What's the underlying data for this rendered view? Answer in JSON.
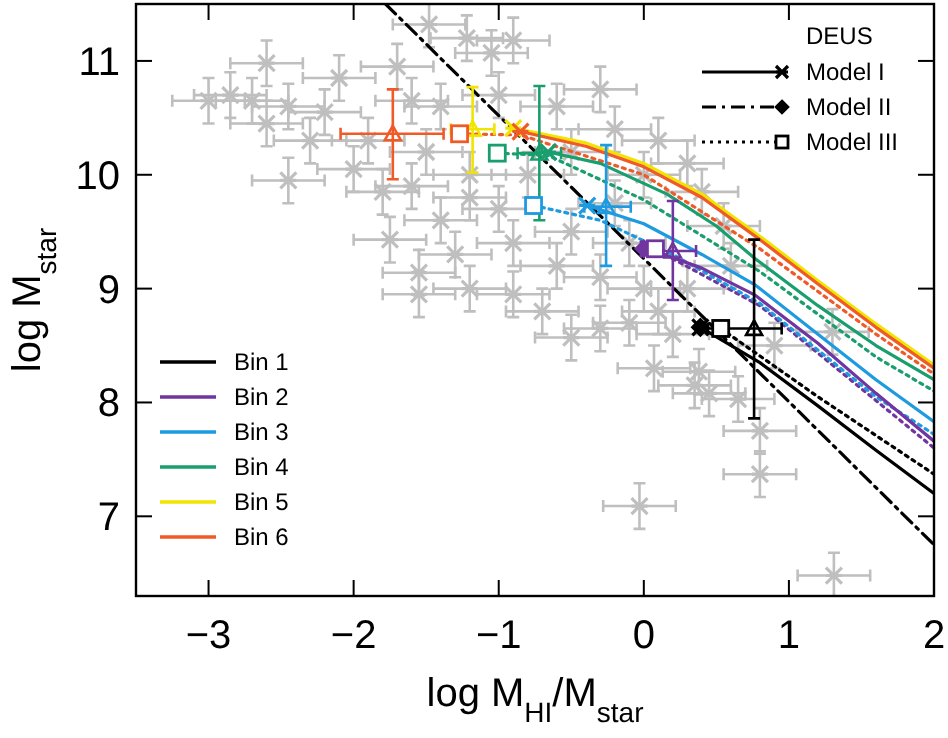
{
  "chart_data": {
    "type": "scatter",
    "xlabel": "log M$_{HI}$/M$_{star}$",
    "ylabel": "log M$_{star}$",
    "xlim": [
      -3.5,
      2
    ],
    "ylim": [
      6.3,
      11.5
    ],
    "xticks": [
      -3,
      -2,
      -1,
      0,
      1,
      2
    ],
    "yticks": [
      7,
      8,
      9,
      10,
      11
    ],
    "legend": "bottom left",
    "legend_title": "DEUS",
    "grid": false,
    "series": [
      {
        "color": "#bfbfbf",
        "marker": "cross",
        "x": [
          1.31,
          -0.03,
          0.8,
          0.8,
          0.65,
          0.45,
          0.35,
          0.38,
          0.07,
          1.3,
          0.9,
          -1.48,
          -1.22,
          -0.9,
          -1.05,
          -2.6,
          -3.0,
          -2.7,
          -2.45,
          -2.1,
          -1.7,
          -1.6,
          -2.3,
          -2.45,
          -2.0,
          -1.8,
          -1.75,
          -1.55,
          -1.55,
          -1.4,
          -1.2,
          -0.9,
          -0.7,
          -0.5,
          -0.3,
          -0.1,
          0.1,
          -0.6,
          -0.3,
          0.0,
          0.3,
          -0.5,
          -0.1,
          -1.0,
          -1.2,
          -0.5,
          -0.2,
          0.1,
          0.3,
          -0.6,
          -0.3,
          -1.4,
          -1.0,
          -2.6,
          -2.2,
          -1.9,
          -1.5,
          -1.6,
          -1.2,
          -0.9,
          -1.3,
          0.2,
          0.6,
          0.0,
          -0.2,
          -0.8,
          -2.85,
          0.4,
          0.55
        ],
        "values": [
          6.48,
          7.09,
          7.37,
          7.75,
          8.03,
          8.08,
          8.15,
          8.27,
          8.3,
          8.62,
          8.5,
          11.32,
          11.2,
          11.18,
          11.07,
          10.98,
          10.65,
          10.65,
          10.6,
          10.85,
          10.95,
          10.65,
          10.3,
          9.95,
          10.05,
          9.85,
          9.43,
          9.14,
          8.95,
          9.6,
          9.0,
          8.95,
          8.8,
          8.57,
          8.65,
          8.7,
          8.8,
          9.2,
          9.1,
          9.0,
          9.0,
          9.5,
          9.4,
          9.7,
          10.0,
          10.2,
          10.4,
          10.3,
          10.1,
          10.6,
          10.75,
          10.6,
          10.7,
          10.45,
          10.55,
          10.3,
          10.2,
          9.9,
          9.8,
          9.4,
          9.3,
          8.6,
          9.2,
          10.0,
          9.75,
          10.0,
          10.7,
          9.85,
          9.55
        ],
        "errors": [
          0.2,
          0.2,
          0.2,
          0.2,
          0.2,
          0.2,
          0.2,
          0.2,
          0.2,
          0.2,
          0.2,
          0.2,
          0.2,
          0.2,
          0.2,
          0.2,
          0.2,
          0.2,
          0.2,
          0.2,
          0.2,
          0.2,
          0.2,
          0.2,
          0.2,
          0.2,
          0.2,
          0.2,
          0.2,
          0.2,
          0.2,
          0.2,
          0.2,
          0.2,
          0.2,
          0.2,
          0.2,
          0.2,
          0.2,
          0.2,
          0.2,
          0.2,
          0.2,
          0.2,
          0.2,
          0.2,
          0.2,
          0.2,
          0.2,
          0.2,
          0.2,
          0.2,
          0.2,
          0.2,
          0.2,
          0.2,
          0.2,
          0.2,
          0.2,
          0.2,
          0.2,
          0.2,
          0.2,
          0.2,
          0.2,
          0.2,
          0.2,
          0.2,
          0.2
        ],
        "xerrors": [
          0.25,
          0.25,
          0.25,
          0.25,
          0.25,
          0.25,
          0.25,
          0.25,
          0.25,
          0.25,
          0.25,
          0.25,
          0.25,
          0.25,
          0.25,
          0.25,
          0.25,
          0.25,
          0.25,
          0.25,
          0.25,
          0.25,
          0.25,
          0.25,
          0.25,
          0.25,
          0.25,
          0.25,
          0.25,
          0.25,
          0.25,
          0.25,
          0.25,
          0.25,
          0.25,
          0.25,
          0.25,
          0.25,
          0.25,
          0.25,
          0.25,
          0.25,
          0.25,
          0.25,
          0.25,
          0.25,
          0.25,
          0.25,
          0.25,
          0.25,
          0.25,
          0.25,
          0.25,
          0.25,
          0.25,
          0.25,
          0.25,
          0.25,
          0.25,
          0.25,
          0.25,
          0.25,
          0.25,
          0.25,
          0.25,
          0.25,
          0.25,
          0.25,
          0.25
        ]
      },
      {
        "type": "line",
        "color": "#000000",
        "line_style": "dashed",
        "x": [
          -1.78,
          2
        ],
        "values": [
          11.5,
          6.75
        ]
      },
      {
        "type": "line",
        "color": "#7035a0",
        "line_style": "dotted",
        "x": [
          0.1,
          0.8,
          2
        ],
        "values": [
          9.33,
          8.85,
          7.6
        ]
      },
      {
        "type": "line",
        "color": "#000000",
        "line_style": "dotted",
        "x": [
          0.53,
          1.2,
          2
        ],
        "values": [
          8.65,
          8.05,
          7.37
        ]
      },
      {
        "type": "line",
        "color": "#1e9be0",
        "line_style": "dotted",
        "x": [
          -0.76,
          -0.3,
          0.2,
          0.8,
          1.6,
          2
        ],
        "values": [
          9.73,
          9.6,
          9.3,
          8.87,
          8.05,
          7.72
        ]
      },
      {
        "type": "line",
        "color": "#1a9e6e",
        "line_style": "dotted",
        "x": [
          -1.01,
          -0.66,
          0,
          0.8,
          1.6,
          2
        ],
        "values": [
          10.19,
          10.17,
          9.78,
          9.15,
          8.4,
          8.1
        ]
      },
      {
        "type": "line",
        "color": "#f05a28",
        "line_style": "dotted",
        "x": [
          -1.27,
          -0.85,
          0,
          0.8,
          1.6,
          2
        ],
        "values": [
          10.36,
          10.35,
          10.0,
          9.35,
          8.6,
          8.25
        ]
      },
      {
        "type": "line",
        "name": "Bin 1",
        "color": "#000000",
        "line_style": "solid",
        "x": [
          0.39,
          0.8,
          1.2,
          1.6,
          2
        ],
        "values": [
          8.66,
          8.35,
          7.97,
          7.58,
          7.2
        ]
      },
      {
        "type": "line",
        "name": "Bin 2",
        "color": "#7035a0",
        "line_style": "solid",
        "x": [
          0.03,
          0.4,
          0.77,
          1.2,
          1.6,
          2
        ],
        "values": [
          9.35,
          9.18,
          8.94,
          8.52,
          8.08,
          7.66
        ]
      },
      {
        "type": "line",
        "name": "Bin 3",
        "color": "#1e9be0",
        "line_style": "solid",
        "x": [
          -0.39,
          0,
          0.4,
          0.77,
          1.2,
          1.6,
          2
        ],
        "values": [
          9.73,
          9.57,
          9.3,
          9.03,
          8.6,
          8.2,
          7.83
        ]
      },
      {
        "type": "line",
        "name": "Bin 4",
        "color": "#1a9e6e",
        "line_style": "solid",
        "x": [
          -0.66,
          -0.3,
          0.16,
          0.5,
          0.77,
          1.2,
          1.6,
          2
        ],
        "values": [
          10.2,
          10.1,
          9.83,
          9.55,
          9.26,
          8.85,
          8.5,
          8.2
        ]
      },
      {
        "type": "line",
        "name": "Bin 5",
        "color": "#f0e400",
        "line_style": "solid",
        "x": [
          -0.9,
          -0.4,
          0,
          0.4,
          0.8,
          1.2,
          1.6,
          2
        ],
        "values": [
          10.41,
          10.28,
          10.1,
          9.83,
          9.46,
          9.07,
          8.69,
          8.33
        ]
      },
      {
        "type": "line",
        "name": "Bin 6",
        "color": "#f05a28",
        "line_style": "solid",
        "x": [
          -0.85,
          -0.4,
          0,
          0.4,
          0.8,
          1.2,
          1.6,
          2
        ],
        "values": [
          10.38,
          10.25,
          10.07,
          9.8,
          9.43,
          9.04,
          8.66,
          8.3
        ]
      },
      {
        "marker": "triangle",
        "x": [
          0.76,
          0.2,
          -0.26,
          -0.72,
          -1.18,
          -1.73
        ],
        "values": [
          8.65,
          9.33,
          9.72,
          10.19,
          10.4,
          10.36
        ],
        "colors": [
          "#000000",
          "#7035a0",
          "#1e9be0",
          "#1a9e6e",
          "#f0e400",
          "#f05a28"
        ],
        "errors": [
          [
            7.86,
            9.43
          ],
          [
            8.9,
            9.77
          ],
          [
            9.2,
            10.26
          ],
          [
            9.6,
            10.78
          ],
          [
            10.02,
            10.77
          ],
          [
            9.96,
            10.75
          ]
        ],
        "xerrors": [
          [
            0.44,
            0.95
          ],
          [
            0.04,
            0.36
          ],
          [
            -0.41,
            -0.09
          ],
          [
            -0.87,
            -0.57
          ],
          [
            -1.33,
            -1.03
          ],
          [
            -2.09,
            -1.38
          ]
        ]
      },
      {
        "name": "Model I",
        "color": "#000000",
        "marker": "cross",
        "line_style": "solid",
        "x": [
          0.39,
          0.03,
          -0.39,
          -0.66,
          -0.9,
          -0.85
        ],
        "values": [
          8.66,
          9.35,
          9.73,
          10.2,
          10.41,
          10.38
        ],
        "colors": [
          "#000000",
          "#7035a0",
          "#1e9be0",
          "#1a9e6e",
          "#f0e400",
          "#f05a28"
        ]
      },
      {
        "name": "Model II",
        "color": "#000000",
        "marker": "diamond",
        "line_style": "dashed",
        "x": [
          0.39,
          0.0
        ],
        "values": [
          8.66,
          9.35
        ],
        "colors": [
          "#000000",
          "#7035a0"
        ]
      },
      {
        "name": "Model III",
        "color": "#000000",
        "marker": "square",
        "line_style": "dotted",
        "x": [
          0.53,
          0.08,
          -0.76,
          -1.01,
          -1.27
        ],
        "values": [
          8.65,
          9.35,
          9.73,
          10.19,
          10.36
        ],
        "colors": [
          "#000000",
          "#7035a0",
          "#1e9be0",
          "#1a9e6e",
          "#f05a28"
        ]
      }
    ]
  }
}
